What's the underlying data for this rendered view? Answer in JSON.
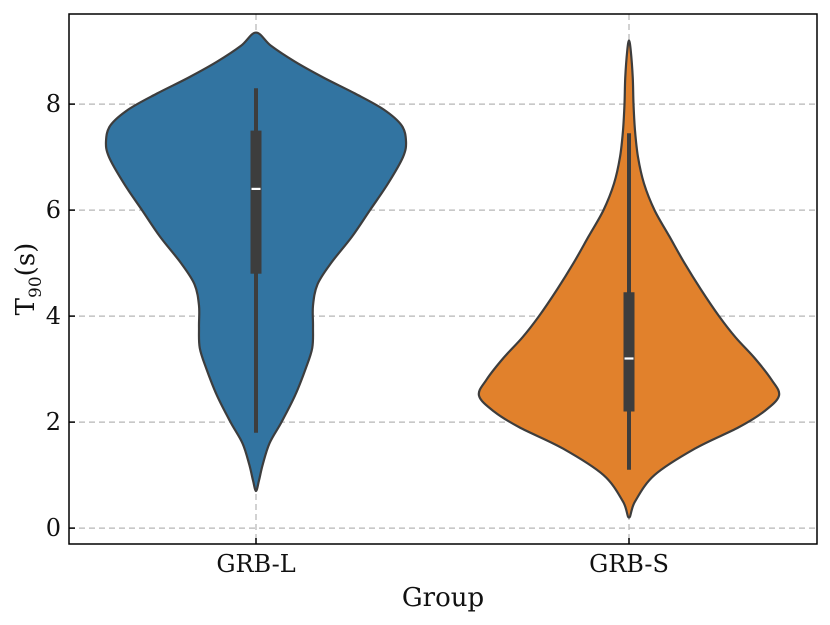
{
  "chart_data": {
    "type": "violin",
    "title": "",
    "xlabel": "Group",
    "ylabel": "T90(s)",
    "ylabel_main": "T",
    "ylabel_sub": "90",
    "ylabel_suffix": "(s)",
    "ylim": [
      -0.3,
      9.7
    ],
    "yticks": [
      0,
      2,
      4,
      6,
      8
    ],
    "grid": true,
    "categories": [
      "GRB-L",
      "GRB-S"
    ],
    "colors": {
      "GRB-L": "#3274a1",
      "GRB-S": "#e1812c",
      "box": "#3d3d3d",
      "outline": "#3d3d3d",
      "median": "#ffffff"
    },
    "series": [
      {
        "name": "GRB-L",
        "stats": {
          "min": 1.8,
          "q1": 4.8,
          "median": 6.4,
          "q3": 7.5,
          "max": 8.3
        },
        "extent": [
          0.7,
          9.35
        ],
        "density_halfwidth": [
          [
            0.7,
            0.0
          ],
          [
            0.9,
            0.02
          ],
          [
            1.2,
            0.045
          ],
          [
            1.6,
            0.09
          ],
          [
            2.0,
            0.17
          ],
          [
            2.5,
            0.26
          ],
          [
            3.0,
            0.33
          ],
          [
            3.4,
            0.375
          ],
          [
            3.8,
            0.38
          ],
          [
            4.2,
            0.38
          ],
          [
            4.6,
            0.41
          ],
          [
            5.0,
            0.5
          ],
          [
            5.5,
            0.64
          ],
          [
            6.0,
            0.76
          ],
          [
            6.5,
            0.88
          ],
          [
            7.0,
            0.98
          ],
          [
            7.3,
            1.0
          ],
          [
            7.6,
            0.97
          ],
          [
            7.9,
            0.85
          ],
          [
            8.2,
            0.66
          ],
          [
            8.5,
            0.45
          ],
          [
            8.8,
            0.26
          ],
          [
            9.1,
            0.1
          ],
          [
            9.35,
            0.0
          ]
        ]
      },
      {
        "name": "GRB-S",
        "stats": {
          "min": 1.1,
          "q1": 2.2,
          "median": 3.2,
          "q3": 4.45,
          "max": 7.45
        },
        "extent": [
          0.2,
          9.2
        ],
        "density_halfwidth": [
          [
            0.2,
            0.0
          ],
          [
            0.5,
            0.04
          ],
          [
            1.0,
            0.17
          ],
          [
            1.5,
            0.44
          ],
          [
            1.9,
            0.73
          ],
          [
            2.2,
            0.9
          ],
          [
            2.5,
            1.0
          ],
          [
            2.8,
            0.95
          ],
          [
            3.2,
            0.84
          ],
          [
            3.6,
            0.71
          ],
          [
            4.0,
            0.6
          ],
          [
            4.5,
            0.48
          ],
          [
            5.0,
            0.37
          ],
          [
            5.5,
            0.27
          ],
          [
            6.0,
            0.17
          ],
          [
            6.5,
            0.1
          ],
          [
            7.0,
            0.06
          ],
          [
            7.5,
            0.04
          ],
          [
            8.0,
            0.03
          ],
          [
            8.5,
            0.025
          ],
          [
            9.0,
            0.012
          ],
          [
            9.2,
            0.0
          ]
        ]
      }
    ]
  }
}
